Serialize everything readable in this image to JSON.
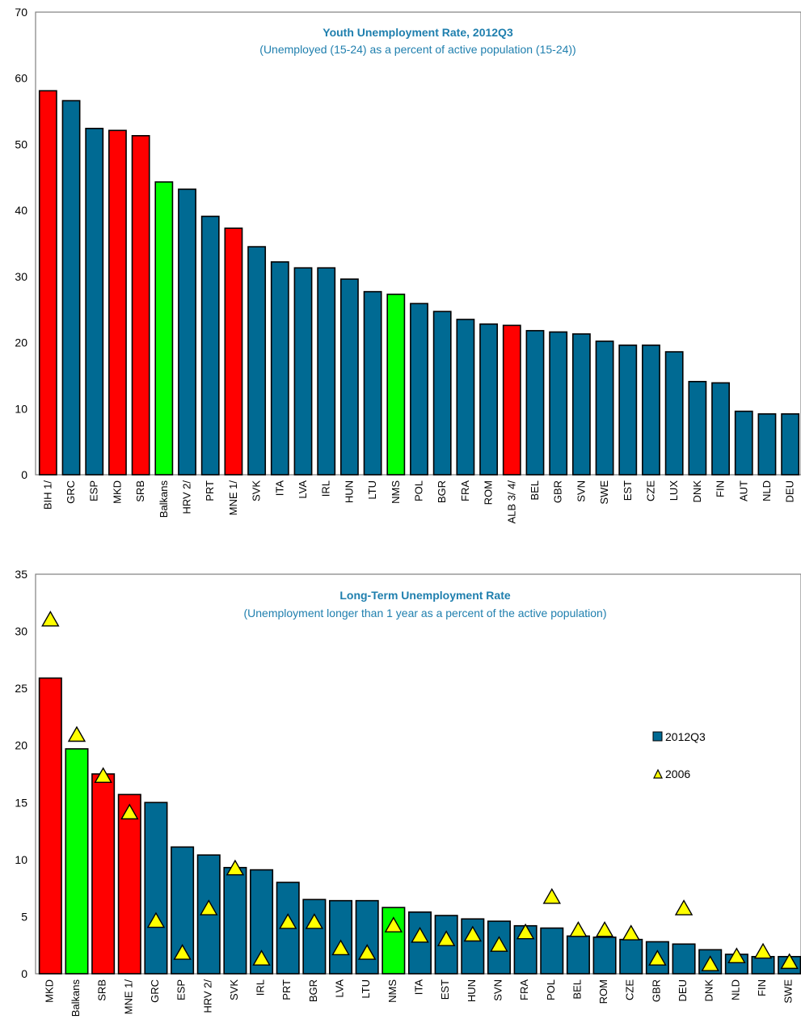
{
  "colors": {
    "default": "#006a93",
    "red": "#ff0000",
    "green": "#00ff00",
    "marker": "#ffff00"
  },
  "chart_data": [
    {
      "type": "bar",
      "title": "Youth Unemployment Rate, 2012Q3",
      "subtitle": "(Unemployed  (15-24) as a percent  of active population (15-24))",
      "ylim": [
        0,
        70
      ],
      "yticks": [
        0,
        10,
        20,
        30,
        40,
        50,
        60,
        70
      ],
      "categories": [
        "BIH 1/",
        "GRC",
        "ESP",
        "MKD",
        "SRB",
        "Balkans",
        "HRV 2/",
        "PRT",
        "MNE 1/",
        "SVK",
        "ITA",
        "LVA",
        "IRL",
        "HUN",
        "LTU",
        "NMS",
        "POL",
        "BGR",
        "FRA",
        "ROM",
        "ALB 3/ 4/",
        "BEL",
        "GBR",
        "SVN",
        "SWE",
        "EST",
        "CZE",
        "LUX",
        "DNK",
        "FIN",
        "AUT",
        "NLD",
        "DEU"
      ],
      "values": [
        58.1,
        56.6,
        52.4,
        52.1,
        51.3,
        44.3,
        43.2,
        39.1,
        37.3,
        34.5,
        32.2,
        31.3,
        31.3,
        29.6,
        27.7,
        27.3,
        25.9,
        24.7,
        23.5,
        22.8,
        22.6,
        21.8,
        21.6,
        21.3,
        20.2,
        19.6,
        19.6,
        18.6,
        14.1,
        13.9,
        9.6,
        9.2,
        9.2
      ],
      "highlight": [
        "red",
        "default",
        "default",
        "red",
        "red",
        "green",
        "default",
        "default",
        "red",
        "default",
        "default",
        "default",
        "default",
        "default",
        "default",
        "green",
        "default",
        "default",
        "default",
        "default",
        "red",
        "default",
        "default",
        "default",
        "default",
        "default",
        "default",
        "default",
        "default",
        "default",
        "default",
        "default",
        "default"
      ]
    },
    {
      "type": "bar",
      "title": "Long-Term Unemployment Rate",
      "subtitle": "(Unemployment longer than 1 year as a percent of the active population)",
      "ylim": [
        0,
        35
      ],
      "yticks": [
        0,
        5,
        10,
        15,
        20,
        25,
        30,
        35
      ],
      "categories": [
        "MKD",
        "Balkans",
        "SRB",
        "MNE 1/",
        "GRC",
        "ESP",
        "HRV 2/",
        "SVK",
        "IRL",
        "PRT",
        "BGR",
        "LVA",
        "LTU",
        "NMS",
        "ITA",
        "EST",
        "HUN",
        "SVN",
        "FRA",
        "POL",
        "BEL",
        "ROM",
        "CZE",
        "GBR",
        "DEU",
        "DNK",
        "NLD",
        "FIN",
        "SWE"
      ],
      "series": [
        {
          "name": "2012Q3",
          "values": [
            25.9,
            19.7,
            17.5,
            15.7,
            15.0,
            11.1,
            10.4,
            9.3,
            9.1,
            8.0,
            6.5,
            6.4,
            6.4,
            5.8,
            5.4,
            5.1,
            4.8,
            4.6,
            4.2,
            4.0,
            3.3,
            3.2,
            3.0,
            2.8,
            2.6,
            2.1,
            1.7,
            1.5,
            1.5
          ]
        },
        {
          "name": "2006",
          "values": [
            31.0,
            20.9,
            17.3,
            14.1,
            4.6,
            1.8,
            5.7,
            9.2,
            1.3,
            4.5,
            4.5,
            2.2,
            1.8,
            4.2,
            3.3,
            3.0,
            3.4,
            2.5,
            3.6,
            6.7,
            3.8,
            3.8,
            3.5,
            1.3,
            5.7,
            0.8,
            1.5,
            1.9,
            1.0
          ]
        }
      ],
      "highlight": [
        "red",
        "green",
        "red",
        "red",
        "default",
        "default",
        "default",
        "default",
        "default",
        "default",
        "default",
        "default",
        "default",
        "green",
        "default",
        "default",
        "default",
        "default",
        "default",
        "default",
        "default",
        "default",
        "default",
        "default",
        "default",
        "default",
        "default",
        "default",
        "default"
      ],
      "legend_position": "right"
    }
  ]
}
